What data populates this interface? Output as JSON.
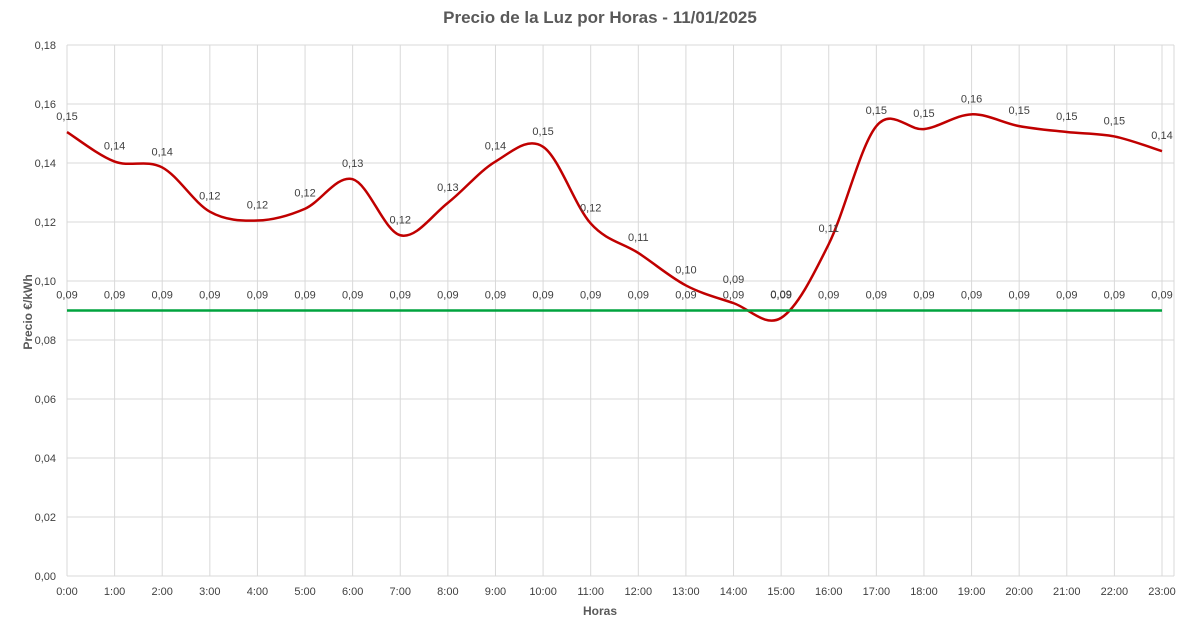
{
  "chart_data": {
    "type": "line",
    "title": "Precio de la Luz por Horas - 11/01/2025",
    "xlabel": "Horas",
    "ylabel": "Precio €/kWh",
    "categories": [
      "0:00",
      "1:00",
      "2:00",
      "3:00",
      "4:00",
      "5:00",
      "6:00",
      "7:00",
      "8:00",
      "9:00",
      "10:00",
      "11:00",
      "12:00",
      "13:00",
      "14:00",
      "15:00",
      "16:00",
      "17:00",
      "18:00",
      "19:00",
      "20:00",
      "21:00",
      "22:00",
      "23:00"
    ],
    "ylim": [
      0,
      0.18
    ],
    "yticks": [
      "0,00",
      "0,02",
      "0,04",
      "0,06",
      "0,08",
      "0,10",
      "0,12",
      "0,14",
      "0,16",
      "0,18"
    ],
    "grid": true,
    "series": [
      {
        "color": "#c00000",
        "smooth": true,
        "values": [
          0.1505,
          0.1405,
          0.1385,
          0.1235,
          0.1205,
          0.1245,
          0.1345,
          0.1155,
          0.1265,
          0.1405,
          0.1455,
          0.1195,
          0.1095,
          0.0985,
          0.0925,
          0.0875,
          0.1125,
          0.1525,
          0.1515,
          0.1565,
          0.1525,
          0.1505,
          0.149,
          0.144
        ],
        "labels": [
          "0,15",
          "0,14",
          "0,14",
          "0,12",
          "0,12",
          "0,12",
          "0,13",
          "0,12",
          "0,13",
          "0,14",
          "0,15",
          "0,12",
          "0,11",
          "0,10",
          "0,09",
          "0,09",
          "0,11",
          "0,15",
          "0,15",
          "0,16",
          "0,15",
          "0,15",
          "0,15",
          "0,14"
        ]
      },
      {
        "color": "#00a33e",
        "smooth": false,
        "values": [
          0.09,
          0.09,
          0.09,
          0.09,
          0.09,
          0.09,
          0.09,
          0.09,
          0.09,
          0.09,
          0.09,
          0.09,
          0.09,
          0.09,
          0.09,
          0.09,
          0.09,
          0.09,
          0.09,
          0.09,
          0.09,
          0.09,
          0.09,
          0.09
        ],
        "labels": [
          "0,09",
          "0,09",
          "0,09",
          "0,09",
          "0,09",
          "0,09",
          "0,09",
          "0,09",
          "0,09",
          "0,09",
          "0,09",
          "0,09",
          "0,09",
          "0,09",
          "0,09",
          "0,09",
          "0,09",
          "0,09",
          "0,09",
          "0,09",
          "0,09",
          "0,09",
          "0,09",
          "0,09"
        ]
      }
    ]
  }
}
